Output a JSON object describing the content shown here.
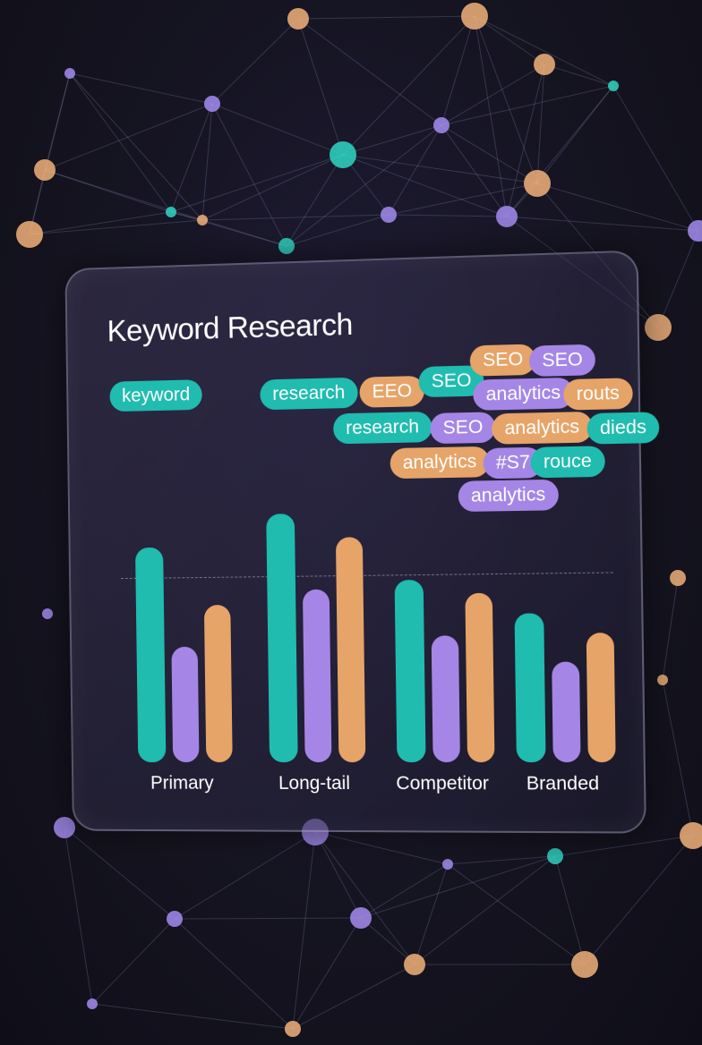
{
  "colors": {
    "teal": "#1fbcaf",
    "purple": "#a586e6",
    "orange": "#e6a468",
    "background": "#14131f"
  },
  "panel": {
    "title": "Keyword Research"
  },
  "tags": [
    {
      "text": "keyword",
      "color": "teal"
    },
    {
      "text": "research",
      "color": "teal"
    },
    {
      "text": "EEO",
      "color": "orange"
    },
    {
      "text": "SEO",
      "color": "teal"
    },
    {
      "text": "SEO",
      "color": "orange"
    },
    {
      "text": "SEO",
      "color": "purple"
    },
    {
      "text": "analytics",
      "color": "purple"
    },
    {
      "text": "routs",
      "color": "orange"
    },
    {
      "text": "research",
      "color": "teal"
    },
    {
      "text": "SEO",
      "color": "purple"
    },
    {
      "text": "analytics",
      "color": "orange"
    },
    {
      "text": "dieds",
      "color": "teal"
    },
    {
      "text": "analytics",
      "color": "orange"
    },
    {
      "text": "#S7",
      "color": "purple"
    },
    {
      "text": "rouce",
      "color": "teal"
    },
    {
      "text": "analytics",
      "color": "purple"
    }
  ],
  "chart_data": {
    "type": "bar",
    "categories": [
      "Primary",
      "Long-tail",
      "Competitor",
      "Branded"
    ],
    "series": [
      {
        "color": "#1fbcaf",
        "values": [
          285,
          327,
          238,
          193
        ]
      },
      {
        "color": "#a586e6",
        "values": [
          153,
          227,
          165,
          130
        ]
      },
      {
        "color": "#e6a468",
        "values": [
          208,
          295,
          220,
          167
        ]
      }
    ],
    "reference_line": 245,
    "ylim": [
      0,
      340
    ],
    "grid": false,
    "legend": "none"
  }
}
